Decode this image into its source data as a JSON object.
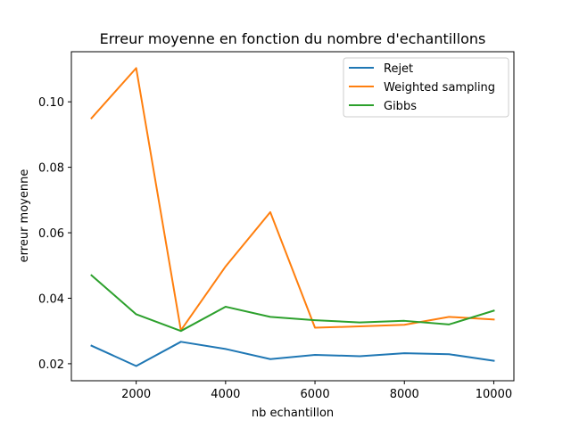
{
  "chart_data": {
    "type": "line",
    "title": "Erreur moyenne en fonction du nombre d'echantillons",
    "xlabel": "nb echantillon",
    "ylabel": "erreur moyenne",
    "x": [
      1000,
      2000,
      3000,
      4000,
      5000,
      6000,
      7000,
      8000,
      9000,
      10000
    ],
    "xlim": [
      550,
      10450
    ],
    "ylim": [
      0.0148,
      0.1153
    ],
    "xticks": [
      2000,
      4000,
      6000,
      8000,
      10000
    ],
    "xtick_labels": [
      "2000",
      "4000",
      "6000",
      "8000",
      "10000"
    ],
    "yticks": [
      0.02,
      0.04,
      0.06,
      0.08,
      0.1
    ],
    "ytick_labels": [
      "0.02",
      "0.04",
      "0.06",
      "0.08",
      "0.10"
    ],
    "grid": false,
    "legend_position": "top-right",
    "series": [
      {
        "name": "Rejet",
        "color": "#1f77b4",
        "values": [
          0.0255,
          0.0193,
          0.0267,
          0.0245,
          0.0214,
          0.0227,
          0.0223,
          0.0232,
          0.0229,
          0.0209
        ]
      },
      {
        "name": "Weighted sampling",
        "color": "#ff7f0e",
        "values": [
          0.095,
          0.1103,
          0.0302,
          0.0497,
          0.0663,
          0.031,
          0.0314,
          0.0319,
          0.0343,
          0.0335
        ]
      },
      {
        "name": "Gibbs",
        "color": "#2ca02c",
        "values": [
          0.047,
          0.0351,
          0.03,
          0.0374,
          0.0343,
          0.0333,
          0.0326,
          0.0331,
          0.032,
          0.0362
        ]
      }
    ]
  }
}
